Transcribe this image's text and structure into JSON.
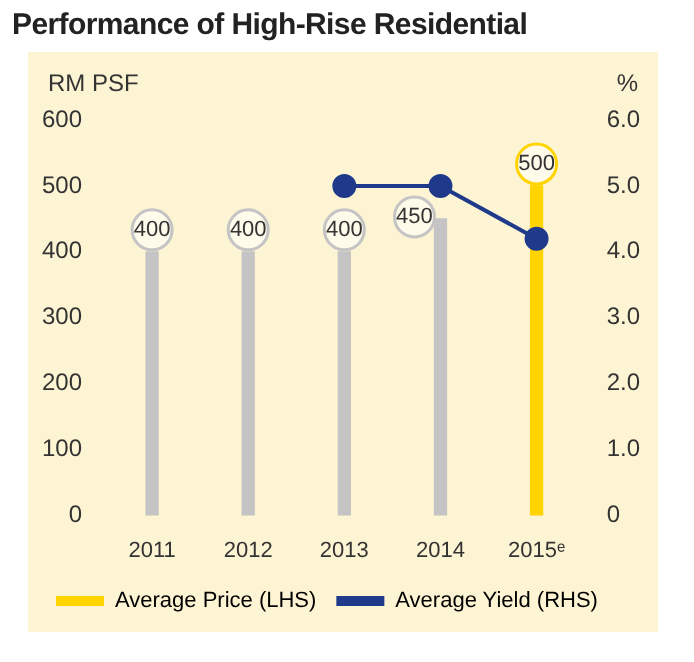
{
  "chart_data": {
    "type": "bar",
    "title": "Performance of High-Rise Residential",
    "ylabel": "RM PSF",
    "y2label": "%",
    "categories": [
      "2011",
      "2012",
      "2013",
      "2014",
      "2015ᵉ"
    ],
    "series": [
      {
        "name": "Average Price (LHS)",
        "color": "#ffd400",
        "colors": [
          "#c4c4c4",
          "#c4c4c4",
          "#c4c4c4",
          "#c4c4c4",
          "#ffd400"
        ],
        "values": [
          400,
          400,
          400,
          450,
          500
        ],
        "value_labels": [
          "400",
          "400",
          "400",
          "450",
          "500"
        ]
      },
      {
        "name": "Average Yield (RHS)",
        "type": "line",
        "axis": "y2",
        "color": "#1f3a8a",
        "marker": "circle",
        "values": [
          null,
          null,
          5.0,
          5.0,
          4.2
        ]
      }
    ],
    "ylim": [
      0,
      600
    ],
    "yticks": [
      0,
      100,
      200,
      300,
      400,
      500,
      600
    ],
    "y2lim": [
      0,
      6
    ],
    "y2ticks": [
      {
        "value": 0,
        "label": "0"
      },
      {
        "value": 1,
        "label": "1.0"
      },
      {
        "value": 2,
        "label": "2.0"
      },
      {
        "value": 3,
        "label": "3.0"
      },
      {
        "value": 4,
        "label": "4.0"
      },
      {
        "value": 5,
        "label": "5.0"
      },
      {
        "value": 6,
        "label": "6.0"
      }
    ],
    "grid": false,
    "legend": "bottom"
  }
}
